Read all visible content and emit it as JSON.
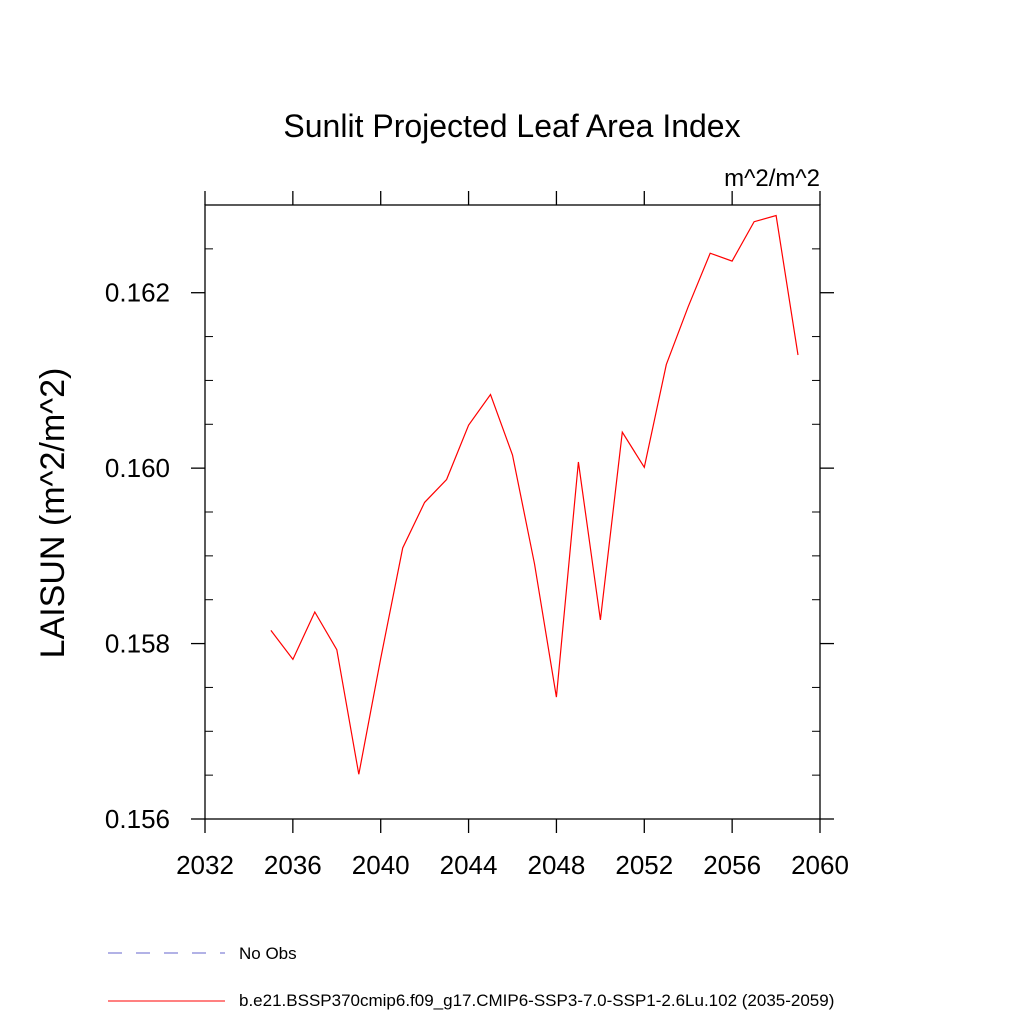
{
  "chart_data": {
    "type": "line",
    "title": "Sunlit Projected Leaf Area Index",
    "units_label": "m^2/m^2",
    "ylabel": "LAISUN  (m^2/m^2)",
    "xlabel": "",
    "xlim": [
      2032,
      2060
    ],
    "ylim": [
      0.156,
      0.163
    ],
    "xticks": [
      2032,
      2036,
      2040,
      2044,
      2048,
      2052,
      2056,
      2060
    ],
    "xtick_labels": [
      "2032",
      "2036",
      "2040",
      "2044",
      "2048",
      "2052",
      "2056",
      "2060"
    ],
    "yticks": [
      0.156,
      0.158,
      0.16,
      0.162
    ],
    "ytick_labels": [
      "0.156",
      "0.158",
      "0.160",
      "0.162"
    ],
    "grid": false,
    "legend_placement": "bottom",
    "series": [
      {
        "name": "b.e21.BSSP370cmip6.f09_g17.CMIP6-SSP3-7.0-SSP1-2.6Lu.102 (2035-2059)",
        "color": "#ff0000",
        "style": "solid",
        "x": [
          2035,
          2036,
          2037,
          2038,
          2039,
          2040,
          2041,
          2042,
          2043,
          2044,
          2045,
          2046,
          2047,
          2048,
          2049,
          2050,
          2051,
          2052,
          2053,
          2054,
          2055,
          2056,
          2057,
          2058,
          2059
        ],
        "y": [
          0.15815,
          0.15782,
          0.15836,
          0.15793,
          0.15651,
          0.15783,
          0.15909,
          0.15961,
          0.15987,
          0.16049,
          0.16084,
          0.16015,
          0.15891,
          0.15739,
          0.16007,
          0.15827,
          0.16041,
          0.16001,
          0.16118,
          0.16184,
          0.16245,
          0.16236,
          0.16281,
          0.16288,
          0.16129
        ]
      }
    ],
    "legend": [
      {
        "label": "No Obs",
        "color": "#6666cc",
        "style": "dashed"
      },
      {
        "label": "b.e21.BSSP370cmip6.f09_g17.CMIP6-SSP3-7.0-SSP1-2.6Lu.102 (2035-2059)",
        "color": "#ff0000",
        "style": "solid"
      }
    ]
  }
}
